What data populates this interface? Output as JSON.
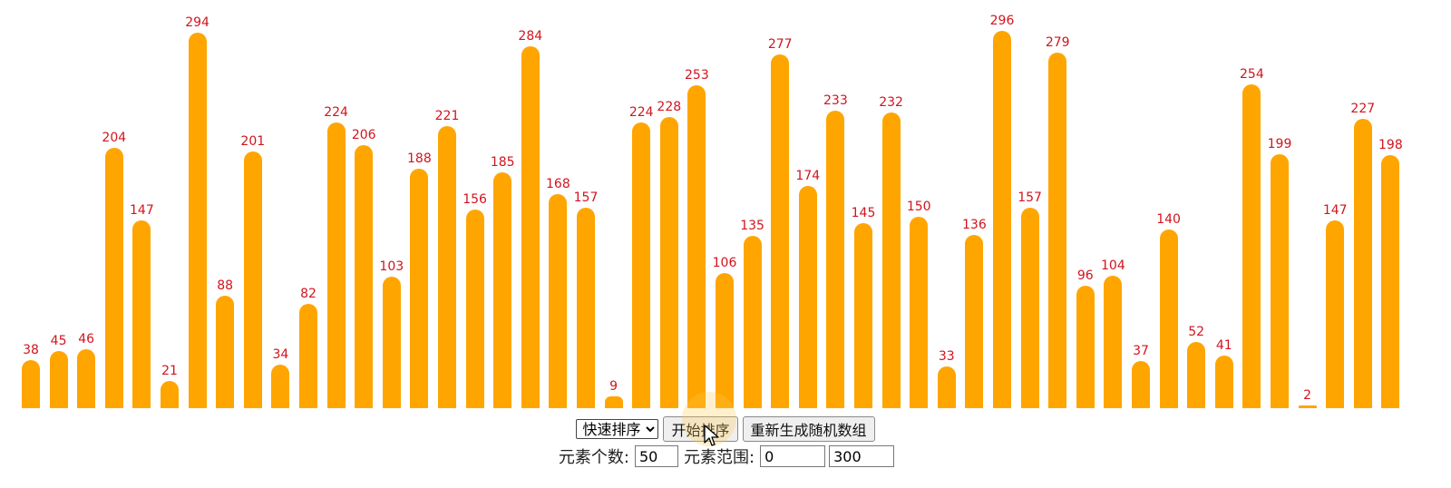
{
  "chart_data": {
    "type": "bar",
    "values": [
      38,
      45,
      46,
      204,
      147,
      21,
      294,
      88,
      201,
      34,
      82,
      224,
      206,
      103,
      188,
      221,
      156,
      185,
      284,
      168,
      157,
      9,
      224,
      228,
      253,
      106,
      135,
      277,
      174,
      233,
      145,
      232,
      150,
      33,
      136,
      296,
      157,
      279,
      96,
      104,
      37,
      140,
      52,
      41,
      254,
      199,
      2,
      147,
      227,
      198
    ],
    "ylim": [
      0,
      300
    ],
    "bar_color": "#ffa500",
    "label_color": "#d2141e"
  },
  "controls": {
    "algorithm_select": {
      "selected": "快速排序",
      "options": [
        "快速排序"
      ]
    },
    "start_button": "开始排序",
    "regenerate_button": "重新生成随机数组",
    "count_label": "元素个数:",
    "count_value": "50",
    "range_label": "元素范围:",
    "range_min": "0",
    "range_max": "300"
  },
  "icons": {
    "cursor": "pointer-cursor-icon"
  }
}
